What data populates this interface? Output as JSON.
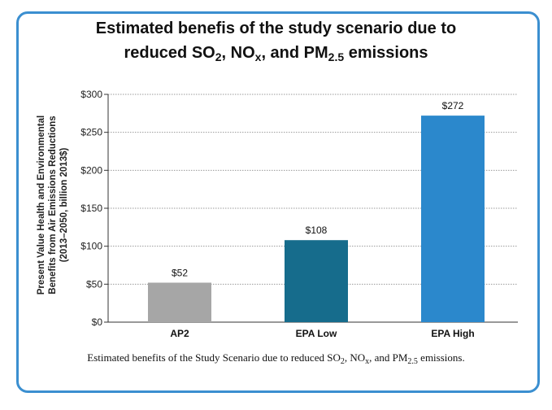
{
  "title_line1": "Estimated benefis of the study scenario due to",
  "title_line2": {
    "pre": "reduced SO",
    "s1": "2",
    "mid1": ", NO",
    "s2": "x",
    "mid2": ", and PM",
    "s3": "2.5",
    "post": " emissions"
  },
  "caption": {
    "pre": "Estimated benefits of the Study Scenario due to reduced SO",
    "s1": "2",
    "mid1": ", NO",
    "s2": "x",
    "mid2": ", and PM",
    "s3": "2.5",
    "post": " emissions."
  },
  "chart_data": {
    "type": "bar",
    "categories": [
      "AP2",
      "EPA Low",
      "EPA High"
    ],
    "values": [
      52,
      108,
      272
    ],
    "data_labels": [
      "$52",
      "$108",
      "$272"
    ],
    "ylabel": "Present Value Health and Environmental Benefits from Air Emissions Reductions (2013–2050, billion 2013$)",
    "ylabel_lines": [
      "Present Value Health and Environmental",
      "Benefits from Air Emissions Reductions",
      "(2013–2050, billion 2013$)"
    ],
    "ylim": [
      0,
      300
    ],
    "yticks": [
      0,
      50,
      100,
      150,
      200,
      250,
      300
    ],
    "ytick_labels": [
      "$0",
      "$50",
      "$100",
      "$150",
      "$200",
      "$250",
      "$300"
    ],
    "grid": true,
    "colors": [
      "#a6a6a6",
      "#166c8c",
      "#2b88cc"
    ]
  }
}
